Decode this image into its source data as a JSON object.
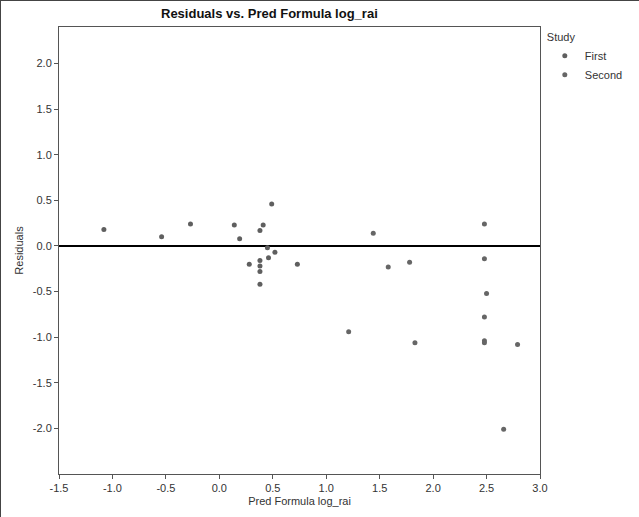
{
  "chart_data": {
    "type": "scatter",
    "title": "Residuals vs. Pred Formula log_rai",
    "x_label": "Pred Formula log_rai",
    "y_label": "Residuals",
    "legend_title": "Study",
    "legend": "upper right",
    "grid": false,
    "marker": "circle",
    "xlim": [
      -1.5,
      3.0
    ],
    "ylim": [
      -2.5,
      2.4
    ],
    "xticks": [
      -1.5,
      {
        "value": -1,
        "label": "-1.0"
      },
      -0.5,
      {
        "value": 0,
        "label": "0.0"
      },
      0.5,
      {
        "value": 1,
        "label": "1.0"
      },
      1.5,
      {
        "value": 2,
        "label": "2.0"
      },
      2.5,
      {
        "value": 3,
        "label": "3.0"
      }
    ],
    "yticks": [
      {
        "value": -2,
        "label": "-2.0"
      },
      -1.5,
      {
        "value": -1,
        "label": "-1.0"
      },
      -0.5,
      {
        "value": 0,
        "label": "0.0"
      },
      0.5,
      {
        "value": 1,
        "label": "1.0"
      },
      1.5,
      {
        "value": 2,
        "label": "2.0"
      }
    ],
    "series": [
      {
        "name": "First",
        "color": "#5f5f5f",
        "x": [
          -1.08,
          -0.54,
          -0.27,
          0.14,
          0.19,
          0.28,
          0.38,
          0.41,
          0.38,
          0.38,
          0.38,
          0.38,
          0.45,
          0.46,
          0.49,
          0.52,
          0.73
        ],
        "values": [
          0.18,
          0.1,
          0.24,
          0.23,
          0.08,
          -0.2,
          0.17,
          0.23,
          -0.16,
          -0.22,
          -0.28,
          -0.42,
          -0.02,
          -0.13,
          0.46,
          -0.07,
          -0.2
        ]
      },
      {
        "name": "Second",
        "color": "#666666",
        "x": [
          1.21,
          1.44,
          1.58,
          1.78,
          1.83,
          2.48,
          2.48,
          2.5,
          2.48,
          2.48,
          2.48,
          2.66,
          2.79
        ],
        "values": [
          -0.94,
          0.14,
          -0.23,
          -0.18,
          -1.06,
          0.24,
          -0.14,
          -0.52,
          -0.78,
          -1.04,
          -1.06,
          -2.01,
          -1.08
        ]
      }
    ]
  }
}
